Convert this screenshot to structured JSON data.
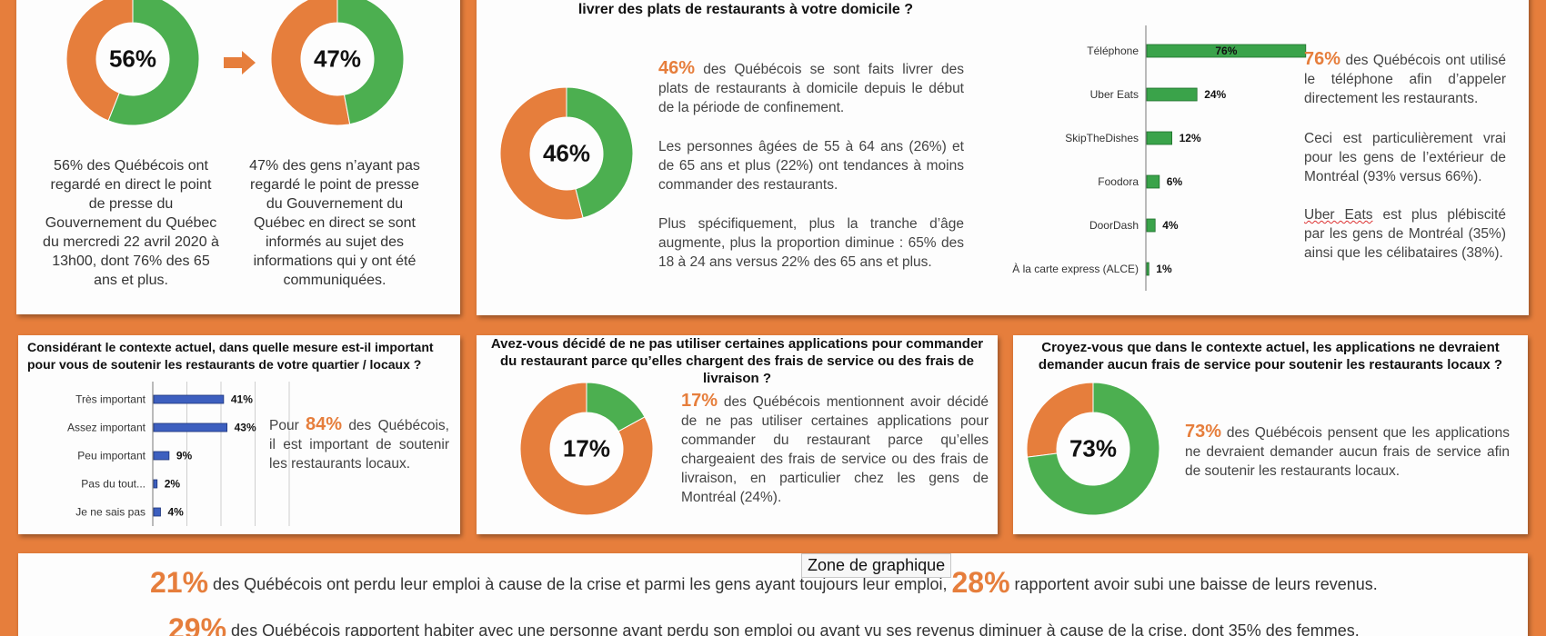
{
  "colors": {
    "orange": "#e67e3c",
    "green": "#4caf50",
    "bar_green": "#3aa34a",
    "bar_blue": "#3d5fbf"
  },
  "panel1": {
    "donut_a": {
      "value": 56,
      "label": "56%"
    },
    "donut_b": {
      "value": 47,
      "label": "47%"
    },
    "caption_a": "56% des Québécois ont regardé en direct le point de presse du Gouvernement du Québec du mercredi 22 avril 2020 à 13h00, dont 76% des 65 ans et plus.",
    "caption_b": "47% des gens n’ayant pas regardé le point de presse du Gouvernement du Québec en direct se sont informés au sujet des informations qui y ont été communiquées."
  },
  "panel2": {
    "question": "livrer des plats de restaurants à votre domicile ?",
    "donut": {
      "value": 46,
      "label": "46%"
    },
    "p1_pct": "46%",
    "p1": " des Québécois se sont faits livrer des plats de restaurants à domicile depuis le début de la période de confinement.",
    "p2": "Les personnes âgées de 55 à 64 ans (26%) et de 65 ans et plus (22%) ont tendances à moins commander des restaurants.",
    "p3": "Plus spécifiquement, plus la tranche d’âge augmente, plus la proportion diminue : 65% des 18 à 24 ans versus 22% des 65 ans et plus.",
    "r1_pct": "76%",
    "r1": " des Québécois ont utilisé le téléphone afin d’appeler directement les restaurants.",
    "r2": "Ceci est particulièrement vrai pour les gens de l’extérieur de Montréal (93% versus 66%).",
    "r3_a": "Uber Eats",
    "r3_b": " est plus plébiscité par les gens de Montréal (35%) ainsi que les célibataires (38%)."
  },
  "panel3": {
    "question": "Considérant le contexte actuel, dans quelle mesure est-il important pour vous de soutenir les restaurants de votre quartier / locaux ?",
    "text_a": "Pour ",
    "text_pct": "84%",
    "text_b": " des Québécois, il est important de soutenir les restaurants locaux."
  },
  "panel4": {
    "question": "Avez-vous décidé de ne pas utiliser certaines applications pour commander du restaurant parce qu’elles chargent des frais de service ou des frais de livraison ?",
    "donut": {
      "value": 17,
      "label": "17%"
    },
    "text_pct": "17%",
    "text": " des Québécois mentionnent avoir décidé de ne pas utiliser certaines applications pour commander du restaurant parce qu’elles chargeaient des frais de service ou des frais de livraison, en particulier chez les gens de Montréal (24%)."
  },
  "panel5": {
    "question": "Croyez-vous que dans le contexte actuel, les applications ne devraient demander aucun frais de service pour soutenir les restaurants locaux ?",
    "donut": {
      "value": 73,
      "label": "73%"
    },
    "text_pct": "73%",
    "text": " des Québécois pensent que les applications ne devraient demander aucun frais de service afin de soutenir les restaurants locaux."
  },
  "bottom": {
    "l1_pct1": "21%",
    "l1_a": " des Québécois ont perdu leur emploi à cause de la crise et parmi les gens ayant toujours leur emploi, ",
    "l1_pct2": "28%",
    "l1_b": " rapportent avoir subi une baisse de leurs revenus.",
    "l2_pct": "29%",
    "l2": " des Québécois rapportent habiter avec une personne ayant perdu son emploi ou ayant vu ses revenus diminuer à cause de la crise, dont 35% des femmes."
  },
  "tooltip": "Zone de graphique",
  "chart_data": [
    {
      "type": "pie",
      "donut": true,
      "values": [
        56,
        44
      ],
      "center_label": "56%"
    },
    {
      "type": "pie",
      "donut": true,
      "values": [
        47,
        53
      ],
      "center_label": "47%"
    },
    {
      "type": "pie",
      "donut": true,
      "values": [
        46,
        54
      ],
      "center_label": "46%"
    },
    {
      "type": "bar",
      "orientation": "horizontal",
      "categories": [
        "Téléphone",
        "Uber Eats",
        "SkipTheDishes",
        "Foodora",
        "DoorDash",
        "À la carte express (ALCE)"
      ],
      "values": [
        76,
        24,
        12,
        6,
        4,
        1
      ],
      "value_labels": [
        "76%",
        "24%",
        "12%",
        "6%",
        "4%",
        "1%"
      ],
      "xlim": [
        0,
        100
      ]
    },
    {
      "type": "bar",
      "orientation": "horizontal",
      "categories": [
        "Très important",
        "Assez important",
        "Peu important",
        "Pas du tout...",
        "Je ne sais pas"
      ],
      "values": [
        41,
        43,
        9,
        2,
        4
      ],
      "value_labels": [
        "41%",
        "43%",
        "9%",
        "2%",
        "4%"
      ],
      "xlim": [
        0,
        80
      ],
      "grid": true
    },
    {
      "type": "pie",
      "donut": true,
      "values": [
        17,
        83
      ],
      "center_label": "17%"
    },
    {
      "type": "pie",
      "donut": true,
      "values": [
        73,
        27
      ],
      "center_label": "73%"
    }
  ]
}
